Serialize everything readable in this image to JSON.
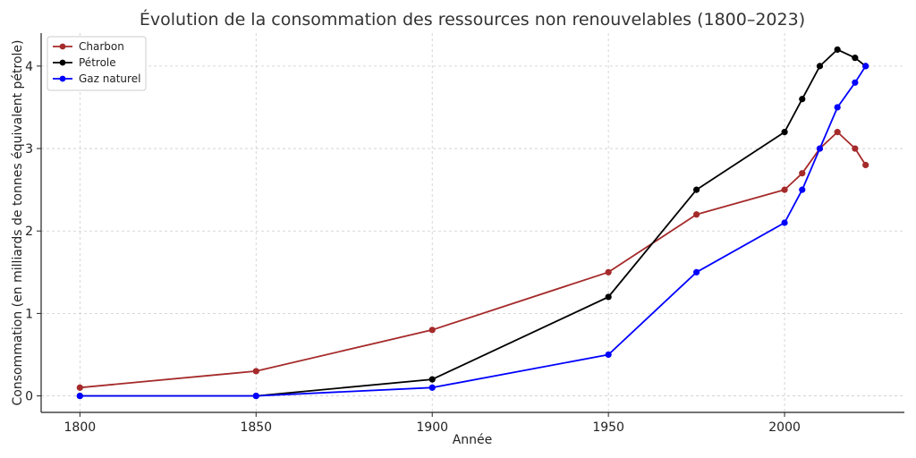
{
  "chart_data": {
    "type": "line",
    "title": "Évolution de la consommation des ressources non renouvelables (1800–2023)",
    "xlabel": "Année",
    "ylabel": "Consommation (en milliards de tonnes équivalent pétrole)",
    "xlim": [
      1789,
      2034
    ],
    "ylim": [
      -0.2,
      4.4
    ],
    "xticks": [
      1800,
      1850,
      1900,
      1950,
      2000
    ],
    "yticks": [
      0,
      1,
      2,
      3,
      4
    ],
    "grid": true,
    "legend_position": "top-left",
    "series": [
      {
        "name": "Charbon",
        "color": "#a52a2a",
        "x": [
          1800,
          1850,
          1900,
          1950,
          1975,
          2000,
          2005,
          2010,
          2015,
          2020,
          2023
        ],
        "y": [
          0.1,
          0.3,
          0.8,
          1.5,
          2.2,
          2.5,
          2.7,
          3.0,
          3.2,
          3.0,
          2.8
        ]
      },
      {
        "name": "Pétrole",
        "color": "#000000",
        "x": [
          1800,
          1850,
          1900,
          1950,
          1975,
          2000,
          2005,
          2010,
          2015,
          2020,
          2023
        ],
        "y": [
          0.0,
          0.0,
          0.2,
          1.2,
          2.5,
          3.2,
          3.6,
          4.0,
          4.2,
          4.1,
          4.0
        ]
      },
      {
        "name": "Gaz naturel",
        "color": "#0000ff",
        "x": [
          1800,
          1850,
          1900,
          1950,
          1975,
          2000,
          2005,
          2010,
          2015,
          2020,
          2023
        ],
        "y": [
          0.0,
          0.0,
          0.1,
          0.5,
          1.5,
          2.1,
          2.5,
          3.0,
          3.5,
          3.8,
          4.0
        ]
      }
    ]
  }
}
